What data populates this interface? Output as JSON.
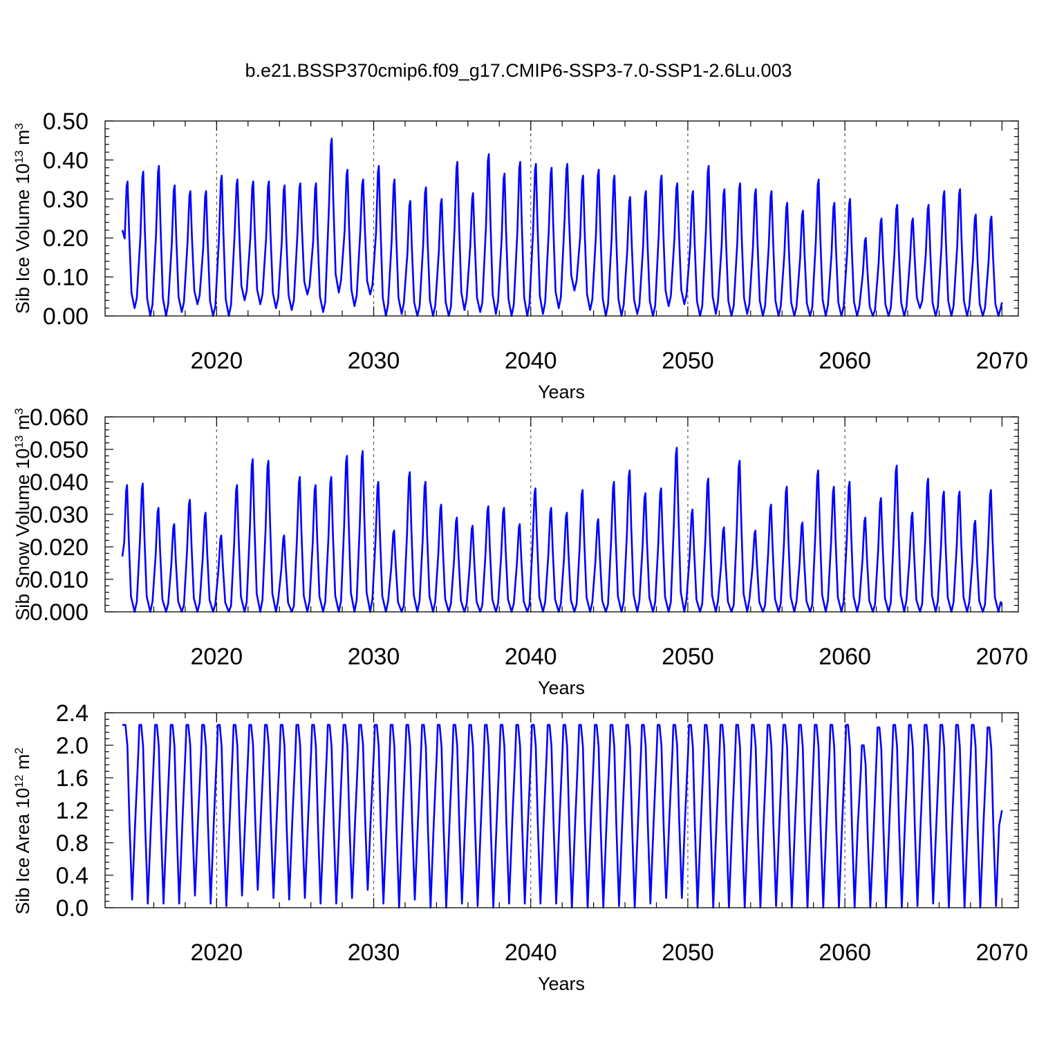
{
  "title": "b.e21.BSSP370cmip6.f09_g17.CMIP6-SSP3-7.0-SSP1-2.6Lu.003",
  "series_color": "#0000ff",
  "chart_data": [
    {
      "type": "line",
      "ylabel": "Sib Ice Volume 10",
      "ylabel_exp1": "13",
      "ylabel_unit": " m",
      "ylabel_exp2": "3",
      "xlabel": "Years",
      "xlim": [
        2014,
        2070
      ],
      "ylim": [
        0,
        0.5
      ],
      "y_ticks": [
        "0.00",
        "0.10",
        "0.20",
        "0.30",
        "0.40",
        "0.50"
      ],
      "x_ticks": [
        "2020",
        "2030",
        "2040",
        "2050",
        "2060",
        "2070"
      ],
      "grid": "vertical dashed at decades",
      "years": [
        2014,
        2015,
        2016,
        2017,
        2018,
        2019,
        2020,
        2021,
        2022,
        2023,
        2024,
        2025,
        2026,
        2027,
        2028,
        2029,
        2030,
        2031,
        2032,
        2033,
        2034,
        2035,
        2036,
        2037,
        2038,
        2039,
        2040,
        2041,
        2042,
        2043,
        2044,
        2045,
        2046,
        2047,
        2048,
        2049,
        2050,
        2051,
        2052,
        2053,
        2054,
        2055,
        2056,
        2057,
        2058,
        2059,
        2060,
        2061,
        2062,
        2063,
        2064,
        2065,
        2066,
        2067,
        2068,
        2069
      ],
      "annual_max": [
        0.345,
        0.37,
        0.385,
        0.335,
        0.32,
        0.32,
        0.36,
        0.35,
        0.345,
        0.345,
        0.335,
        0.34,
        0.34,
        0.455,
        0.375,
        0.35,
        0.385,
        0.35,
        0.295,
        0.33,
        0.3,
        0.395,
        0.315,
        0.415,
        0.365,
        0.395,
        0.39,
        0.38,
        0.39,
        0.36,
        0.375,
        0.36,
        0.305,
        0.32,
        0.36,
        0.34,
        0.32,
        0.385,
        0.325,
        0.34,
        0.325,
        0.32,
        0.29,
        0.27,
        0.35,
        0.29,
        0.3,
        0.2,
        0.25,
        0.285,
        0.25,
        0.285,
        0.32,
        0.325,
        0.26,
        0.255
      ],
      "annual_min": [
        0.02,
        0.0,
        0.0,
        0.01,
        0.03,
        0.0,
        0.0,
        0.04,
        0.03,
        0.02,
        0.015,
        0.055,
        0.01,
        0.06,
        0.025,
        0.055,
        0.0,
        0.005,
        0.0,
        0.0,
        0.0,
        0.015,
        0.01,
        0.005,
        0.0,
        0.0,
        0.005,
        0.02,
        0.065,
        0.015,
        0.0,
        0.0,
        0.005,
        0.0,
        0.025,
        0.03,
        0.0,
        0.005,
        0.0,
        0.005,
        0.0,
        0.0,
        0.0,
        0.0,
        0.0,
        0.0,
        0.0,
        0.0,
        0.0,
        0.0,
        0.02,
        0.0,
        0.0,
        0.0,
        0.0,
        0.0
      ],
      "start_value": 0.22,
      "end_value": 0.035
    },
    {
      "type": "line",
      "ylabel": "Sib Snow Volume 10",
      "ylabel_exp1": "13",
      "ylabel_unit": " m",
      "ylabel_exp2": "3",
      "xlabel": "Years",
      "xlim": [
        2014,
        2070
      ],
      "ylim": [
        0,
        0.06
      ],
      "y_ticks": [
        "0.000",
        "0.010",
        "0.020",
        "0.030",
        "0.040",
        "0.050",
        "0.060"
      ],
      "x_ticks": [
        "2020",
        "2030",
        "2040",
        "2050",
        "2060",
        "2070"
      ],
      "grid": "vertical dashed at decades",
      "years": [
        2014,
        2015,
        2016,
        2017,
        2018,
        2019,
        2020,
        2021,
        2022,
        2023,
        2024,
        2025,
        2026,
        2027,
        2028,
        2029,
        2030,
        2031,
        2032,
        2033,
        2034,
        2035,
        2036,
        2037,
        2038,
        2039,
        2040,
        2041,
        2042,
        2043,
        2044,
        2045,
        2046,
        2047,
        2048,
        2049,
        2050,
        2051,
        2052,
        2053,
        2054,
        2055,
        2056,
        2057,
        2058,
        2059,
        2060,
        2061,
        2062,
        2063,
        2064,
        2065,
        2066,
        2067,
        2068,
        2069
      ],
      "annual_max": [
        0.039,
        0.0395,
        0.032,
        0.027,
        0.0345,
        0.0305,
        0.0235,
        0.039,
        0.047,
        0.0465,
        0.0235,
        0.0415,
        0.039,
        0.0415,
        0.048,
        0.0495,
        0.04,
        0.025,
        0.043,
        0.04,
        0.033,
        0.029,
        0.0265,
        0.0325,
        0.032,
        0.027,
        0.038,
        0.032,
        0.0305,
        0.0375,
        0.0285,
        0.04,
        0.0435,
        0.0365,
        0.038,
        0.0505,
        0.0315,
        0.041,
        0.026,
        0.0465,
        0.025,
        0.033,
        0.0385,
        0.0275,
        0.0435,
        0.0385,
        0.04,
        0.029,
        0.035,
        0.045,
        0.0305,
        0.041,
        0.037,
        0.037,
        0.028,
        0.0375
      ],
      "annual_min": [
        0,
        0,
        0,
        0,
        0,
        0,
        0,
        0,
        0,
        0,
        0,
        0,
        0,
        0,
        0,
        0,
        0,
        0,
        0,
        0,
        0,
        0,
        0,
        0,
        0,
        0,
        0,
        0,
        0,
        0,
        0,
        0,
        0,
        0,
        0,
        0,
        0,
        0,
        0,
        0,
        0,
        0,
        0,
        0,
        0,
        0,
        0,
        0,
        0,
        0,
        0,
        0,
        0,
        0,
        0,
        0
      ],
      "start_value": 0.017,
      "end_value": 0.002
    },
    {
      "type": "line",
      "ylabel": "Sib Ice Area 10",
      "ylabel_exp1": "12",
      "ylabel_unit": " m",
      "ylabel_exp2": "2",
      "xlabel": "Years",
      "xlim": [
        2014,
        2070
      ],
      "ylim": [
        0,
        2.4
      ],
      "y_ticks": [
        "0.0",
        "0.4",
        "0.8",
        "1.2",
        "1.6",
        "2.0",
        "2.4"
      ],
      "x_ticks": [
        "2020",
        "2030",
        "2040",
        "2050",
        "2060",
        "2070"
      ],
      "grid": "vertical dashed at decades",
      "years": [
        2014,
        2015,
        2016,
        2017,
        2018,
        2019,
        2020,
        2021,
        2022,
        2023,
        2024,
        2025,
        2026,
        2027,
        2028,
        2029,
        2030,
        2031,
        2032,
        2033,
        2034,
        2035,
        2036,
        2037,
        2038,
        2039,
        2040,
        2041,
        2042,
        2043,
        2044,
        2045,
        2046,
        2047,
        2048,
        2049,
        2050,
        2051,
        2052,
        2053,
        2054,
        2055,
        2056,
        2057,
        2058,
        2059,
        2060,
        2061,
        2062,
        2063,
        2064,
        2065,
        2066,
        2067,
        2068,
        2069
      ],
      "annual_max": [
        2.25,
        2.25,
        2.25,
        2.25,
        2.25,
        2.25,
        2.25,
        2.25,
        2.25,
        2.25,
        2.25,
        2.25,
        2.25,
        2.25,
        2.25,
        2.25,
        2.25,
        2.25,
        2.25,
        2.25,
        2.25,
        2.25,
        2.25,
        2.25,
        2.25,
        2.25,
        2.25,
        2.25,
        2.25,
        2.25,
        2.25,
        2.25,
        2.25,
        2.25,
        2.25,
        2.25,
        2.25,
        2.25,
        2.25,
        2.25,
        2.25,
        2.25,
        2.25,
        2.25,
        2.25,
        2.25,
        2.25,
        2.0,
        2.22,
        2.25,
        2.25,
        2.25,
        2.25,
        2.25,
        2.25,
        2.22
      ],
      "annual_min": [
        0.1,
        0.05,
        0.05,
        0.05,
        0.15,
        0.05,
        0.02,
        0.15,
        0.22,
        0.12,
        0.1,
        0.12,
        0.05,
        0.05,
        0.12,
        0.22,
        0.05,
        0.0,
        0.1,
        0.0,
        0.0,
        0.05,
        0.02,
        0.0,
        0.05,
        0.05,
        0.05,
        0.05,
        0.0,
        0.0,
        0.0,
        0.02,
        0.0,
        0.05,
        0.12,
        0.12,
        0.0,
        0.0,
        0.0,
        0.0,
        0.0,
        0.02,
        0.0,
        0.0,
        0.0,
        0.0,
        0.0,
        0.0,
        0.0,
        0.0,
        0.02,
        0.05,
        0.0,
        0.0,
        0.0,
        0.02
      ],
      "start_value": 2.25,
      "end_value": 1.2
    }
  ]
}
